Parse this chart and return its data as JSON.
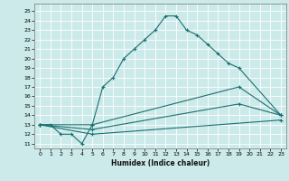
{
  "xlabel": "Humidex (Indice chaleur)",
  "bg_color": "#cceaea",
  "grid_color": "#ffffff",
  "line_color": "#1a7070",
  "xlim": [
    -0.5,
    23.5
  ],
  "ylim": [
    10.5,
    25.8
  ],
  "xticks": [
    0,
    1,
    2,
    3,
    4,
    5,
    6,
    7,
    8,
    9,
    10,
    11,
    12,
    13,
    14,
    15,
    16,
    17,
    18,
    19,
    20,
    21,
    22,
    23
  ],
  "yticks": [
    11,
    12,
    13,
    14,
    15,
    16,
    17,
    18,
    19,
    20,
    21,
    22,
    23,
    24,
    25
  ],
  "series": [
    {
      "x": [
        0,
        1,
        2,
        3,
        4,
        5,
        6,
        7,
        8,
        9,
        10,
        11,
        12,
        13,
        14,
        15,
        16,
        17,
        18,
        19,
        23
      ],
      "y": [
        13,
        13,
        12,
        12,
        11,
        13,
        17,
        18,
        20,
        21,
        22,
        23,
        24.5,
        24.5,
        23,
        22.5,
        21.5,
        20.5,
        19.5,
        19,
        14
      ]
    },
    {
      "x": [
        0,
        5,
        19,
        23
      ],
      "y": [
        13,
        13,
        17,
        14
      ]
    },
    {
      "x": [
        0,
        5,
        19,
        23
      ],
      "y": [
        13,
        12.5,
        15.2,
        14
      ]
    },
    {
      "x": [
        0,
        5,
        23
      ],
      "y": [
        13,
        12,
        13.5
      ]
    }
  ]
}
